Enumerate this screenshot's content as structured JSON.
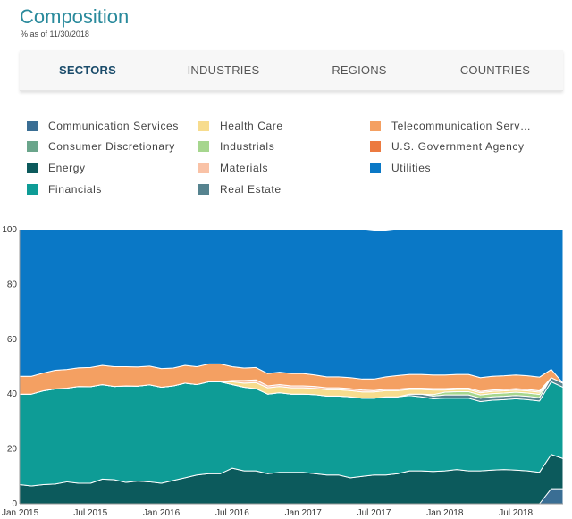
{
  "header": {
    "title": "Composition",
    "subtitle": "% as of 11/30/2018"
  },
  "tabs": [
    {
      "label": "SECTORS",
      "active": true
    },
    {
      "label": "INDUSTRIES",
      "active": false
    },
    {
      "label": "REGIONS",
      "active": false
    },
    {
      "label": "COUNTRIES",
      "active": false
    }
  ],
  "legend": [
    {
      "label": "Communication Services",
      "color": "#3a6e94"
    },
    {
      "label": "Consumer Discretionary",
      "color": "#6aa58b"
    },
    {
      "label": "Energy",
      "color": "#0c5a5c"
    },
    {
      "label": "Financials",
      "color": "#0e9c96"
    },
    {
      "label": "Health Care",
      "color": "#f7dc8e"
    },
    {
      "label": "Industrials",
      "color": "#a6d68e"
    },
    {
      "label": "Materials",
      "color": "#f9c2a6"
    },
    {
      "label": "Real Estate",
      "color": "#56838f"
    },
    {
      "label": "Telecommunication Serv…",
      "color": "#f4a062"
    },
    {
      "label": "U.S. Government Agency",
      "color": "#ec7a40"
    },
    {
      "label": "Utilities",
      "color": "#0a78c6"
    }
  ],
  "chart_data": {
    "type": "area",
    "stacked": true,
    "ylim": [
      0,
      100
    ],
    "yticks": [
      0,
      20,
      40,
      60,
      80,
      100
    ],
    "xlim": [
      "2015-01",
      "2018-11"
    ],
    "xticks": [
      "Jan 2015",
      "Jul 2015",
      "Jan 2016",
      "Jul 2016",
      "Jan 2017",
      "Jul 2017",
      "Jan 2018",
      "Jul 2018"
    ],
    "x": [
      "2015-01",
      "2015-02",
      "2015-03",
      "2015-04",
      "2015-05",
      "2015-06",
      "2015-07",
      "2015-08",
      "2015-09",
      "2015-10",
      "2015-11",
      "2015-12",
      "2016-01",
      "2016-02",
      "2016-03",
      "2016-04",
      "2016-05",
      "2016-06",
      "2016-07",
      "2016-08",
      "2016-09",
      "2016-10",
      "2016-11",
      "2016-12",
      "2017-01",
      "2017-02",
      "2017-03",
      "2017-04",
      "2017-05",
      "2017-06",
      "2017-07",
      "2017-08",
      "2017-09",
      "2017-10",
      "2017-11",
      "2017-12",
      "2018-01",
      "2018-02",
      "2018-03",
      "2018-04",
      "2018-05",
      "2018-06",
      "2018-07",
      "2018-08",
      "2018-09",
      "2018-10",
      "2018-11"
    ],
    "series": [
      {
        "name": "Communication Services",
        "color": "#3a6e94",
        "values": [
          0,
          0,
          0,
          0,
          0,
          0,
          0,
          0,
          0,
          0,
          0,
          0,
          0,
          0,
          0,
          0,
          0,
          0,
          0,
          0,
          0,
          0,
          0,
          0,
          0,
          0,
          0,
          0,
          0,
          0,
          0,
          0,
          0,
          0,
          0,
          0,
          0,
          0,
          0,
          0,
          0,
          0,
          0,
          0,
          0,
          5.5,
          5.5
        ]
      },
      {
        "name": "Energy",
        "color": "#0c5a5c",
        "values": [
          7,
          6.5,
          7,
          7.2,
          8,
          7.5,
          7.5,
          9,
          8.8,
          7.8,
          8.3,
          8,
          7.5,
          8.5,
          9.5,
          10.5,
          11,
          11,
          13,
          12,
          12,
          11,
          11.5,
          11.5,
          11.5,
          11,
          10.5,
          10.5,
          9.5,
          10,
          10.5,
          10.5,
          11,
          12,
          12,
          11.8,
          12,
          12.5,
          12,
          12,
          12.3,
          12.5,
          12.3,
          12,
          11.5,
          12.5,
          11
        ]
      },
      {
        "name": "Financials",
        "color": "#0e9c96",
        "values": [
          33,
          33.5,
          34.2,
          34.7,
          34.2,
          35.3,
          35.2,
          34.5,
          34,
          35.2,
          34.6,
          35.4,
          35,
          34.5,
          34.5,
          33,
          33.5,
          33.5,
          30.5,
          30.5,
          30,
          29,
          29,
          28.5,
          28.5,
          28.8,
          28.8,
          28.8,
          29.5,
          28.5,
          28,
          28.5,
          28,
          27.5,
          27,
          26.5,
          26.5,
          26,
          26.5,
          25.3,
          25.5,
          25.5,
          26,
          26,
          26,
          26.5,
          26
        ]
      },
      {
        "name": "Real Estate",
        "color": "#56838f",
        "values": [
          0,
          0,
          0,
          0,
          0,
          0,
          0,
          0,
          0,
          0,
          0,
          0,
          0,
          0,
          0,
          0,
          0,
          0,
          0,
          0,
          0,
          0,
          0,
          0,
          0,
          0,
          0,
          0,
          0,
          0,
          0,
          0,
          0,
          0.5,
          1,
          1,
          1.2,
          1.2,
          1.2,
          1.2,
          1.2,
          1.2,
          1.2,
          1.2,
          1.2,
          1.5,
          1.5
        ]
      },
      {
        "name": "Industrials",
        "color": "#a6d68e",
        "values": [
          0,
          0,
          0,
          0,
          0,
          0,
          0,
          0,
          0,
          0,
          0,
          0,
          0,
          0,
          0,
          0,
          0,
          0,
          0,
          0,
          0,
          0,
          0,
          0,
          0,
          0,
          0,
          0,
          0,
          0,
          0,
          0,
          0,
          0,
          0,
          0.5,
          1,
          1.2,
          1.2,
          1.2,
          1.2,
          1.2,
          1.2,
          1.2,
          1.2,
          0,
          0
        ]
      },
      {
        "name": "Health Care",
        "color": "#f7dc8e",
        "values": [
          0,
          0,
          0,
          0,
          0,
          0,
          0,
          0,
          0,
          0,
          0,
          0,
          0,
          0,
          0,
          0,
          0,
          0,
          1,
          1.5,
          2.2,
          2.3,
          2.3,
          2.3,
          2.3,
          2.3,
          2.3,
          2.3,
          2.3,
          2.3,
          2.3,
          2.3,
          2.3,
          1.7,
          1.7,
          1.7,
          0.8,
          0.8,
          0.8,
          0.8,
          0.8,
          0.8,
          0.8,
          0.8,
          0.8,
          0,
          0
        ]
      },
      {
        "name": "Materials",
        "color": "#f9c2a6",
        "values": [
          0,
          0,
          0,
          0,
          0,
          0,
          0,
          0,
          0,
          0,
          0,
          0,
          0,
          0,
          0,
          0,
          0,
          0,
          0.5,
          1,
          1,
          0.7,
          0.7,
          0.7,
          0.7,
          0.7,
          0.7,
          0.7,
          0.7,
          0.7,
          0.5,
          0.5,
          0.5,
          0.5,
          0.5,
          0.5,
          0.5,
          0.5,
          0.5,
          0.5,
          0.5,
          0.5,
          0.5,
          0.5,
          0.5,
          0,
          0
        ]
      },
      {
        "name": "Telecommunication Serv…",
        "color": "#f4a062",
        "values": [
          6.5,
          6.5,
          6.5,
          6.8,
          6.8,
          6.8,
          7,
          7,
          7.2,
          7,
          7,
          6.8,
          6.8,
          6.5,
          6.5,
          6.5,
          6.5,
          6.5,
          5,
          4.5,
          4.5,
          4.5,
          4.5,
          4.5,
          4.5,
          4.2,
          4,
          4,
          4,
          4,
          4.2,
          4.5,
          5,
          5,
          5,
          5,
          5,
          5,
          5,
          5,
          5,
          5,
          5,
          5,
          5,
          3,
          0
        ]
      },
      {
        "name": "U.S. Government Agency",
        "color": "#ec7a40",
        "values": [
          0,
          0,
          0,
          0,
          0,
          0,
          0,
          0,
          0,
          0,
          0,
          0,
          0,
          0,
          0,
          0,
          0,
          0,
          0,
          0,
          0,
          0,
          0,
          0,
          0,
          0,
          0,
          0,
          0,
          0,
          0,
          0,
          0,
          0,
          0,
          0,
          0,
          0,
          0,
          0,
          0,
          0,
          0,
          0,
          0,
          0,
          0
        ]
      },
      {
        "name": "Utilities",
        "color": "#0a78c6",
        "values": [
          53.5,
          53.5,
          52.3,
          51.3,
          51,
          50.4,
          50.3,
          49.5,
          50,
          50,
          50.1,
          49.8,
          50.7,
          50.5,
          49.5,
          50,
          49,
          49,
          50,
          50.5,
          50.3,
          52.5,
          52,
          52.5,
          52.5,
          53,
          53.7,
          53.7,
          54,
          54.5,
          54,
          53.2,
          53.2,
          52.8,
          52.8,
          53,
          53,
          52.8,
          52.8,
          54,
          53.5,
          53.3,
          53,
          53.3,
          53.8,
          51,
          56
        ]
      }
    ]
  }
}
